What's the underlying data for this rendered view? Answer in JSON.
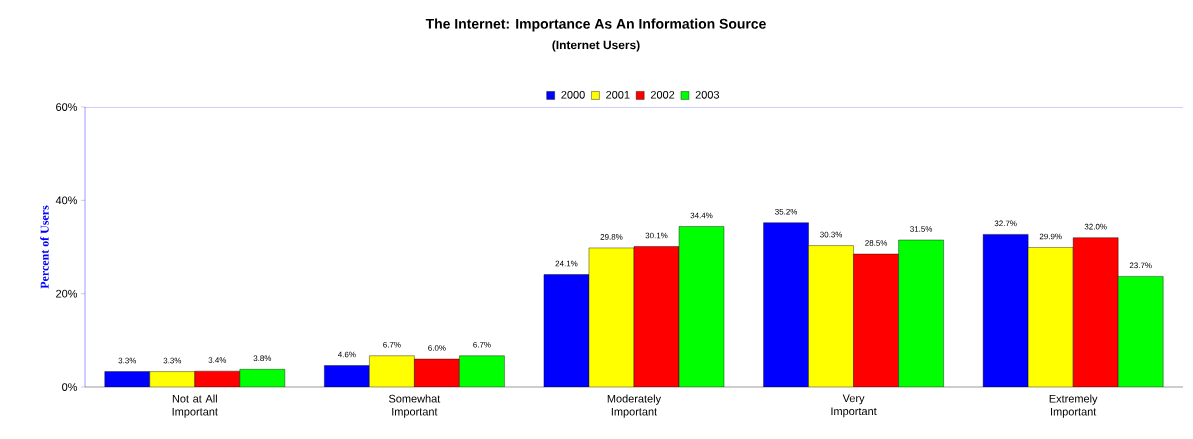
{
  "chart_data": {
    "type": "bar",
    "title": "The Internet: Importance As An Information Source",
    "subtitle": "(Internet Users)",
    "ylabel": "Percent of Users",
    "categories": [
      "Not at All Important",
      "Somewhat Important",
      "Moderately Important",
      "Very Important",
      "Extremely Important"
    ],
    "series": [
      {
        "name": "2000",
        "color": "#0000ff",
        "values": [
          3.3,
          4.6,
          24.1,
          35.2,
          32.7
        ],
        "value_labels": [
          "3.3%",
          "4.6%",
          "24.1%",
          "35.2%",
          "32.7%"
        ]
      },
      {
        "name": "2001",
        "color": "#ffff00",
        "values": [
          3.3,
          6.7,
          29.8,
          30.3,
          29.9
        ],
        "value_labels": [
          "3.3%",
          "6.7%",
          "29.8%",
          "30.3%",
          "29.9%"
        ]
      },
      {
        "name": "2002",
        "color": "#ff0000",
        "values": [
          3.4,
          6.0,
          30.1,
          28.5,
          32.0
        ],
        "value_labels": [
          "3.4%",
          "6.0%",
          "30.1%",
          "28.5%",
          "32.0%"
        ]
      },
      {
        "name": "2003",
        "color": "#00ff00",
        "values": [
          3.8,
          6.7,
          34.4,
          31.5,
          23.7
        ],
        "value_labels": [
          "3.8%",
          "6.7%",
          "34.4%",
          "31.5%",
          "23.7%"
        ]
      }
    ],
    "ylim": [
      0,
      60
    ],
    "yticks": [
      {
        "value": 0,
        "label": "0%"
      },
      {
        "value": 20,
        "label": "20%"
      },
      {
        "value": 40,
        "label": "40%"
      },
      {
        "value": 60,
        "label": "60%"
      }
    ],
    "legend": "top",
    "grid": false
  }
}
